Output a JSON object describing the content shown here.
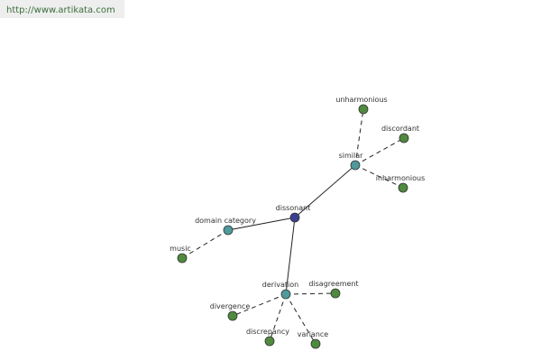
{
  "header": {
    "url": "http://www.artikata.com"
  },
  "nodes": [
    {
      "label": "dissonant"
    },
    {
      "label": "similar"
    },
    {
      "label": "unharmonious"
    },
    {
      "label": "discordant"
    },
    {
      "label": "inharmonious"
    },
    {
      "label": "domain category"
    },
    {
      "label": "music"
    },
    {
      "label": "derivation"
    },
    {
      "label": "disagreement"
    },
    {
      "label": "divergence"
    },
    {
      "label": "discrepancy"
    },
    {
      "label": "variance"
    }
  ]
}
